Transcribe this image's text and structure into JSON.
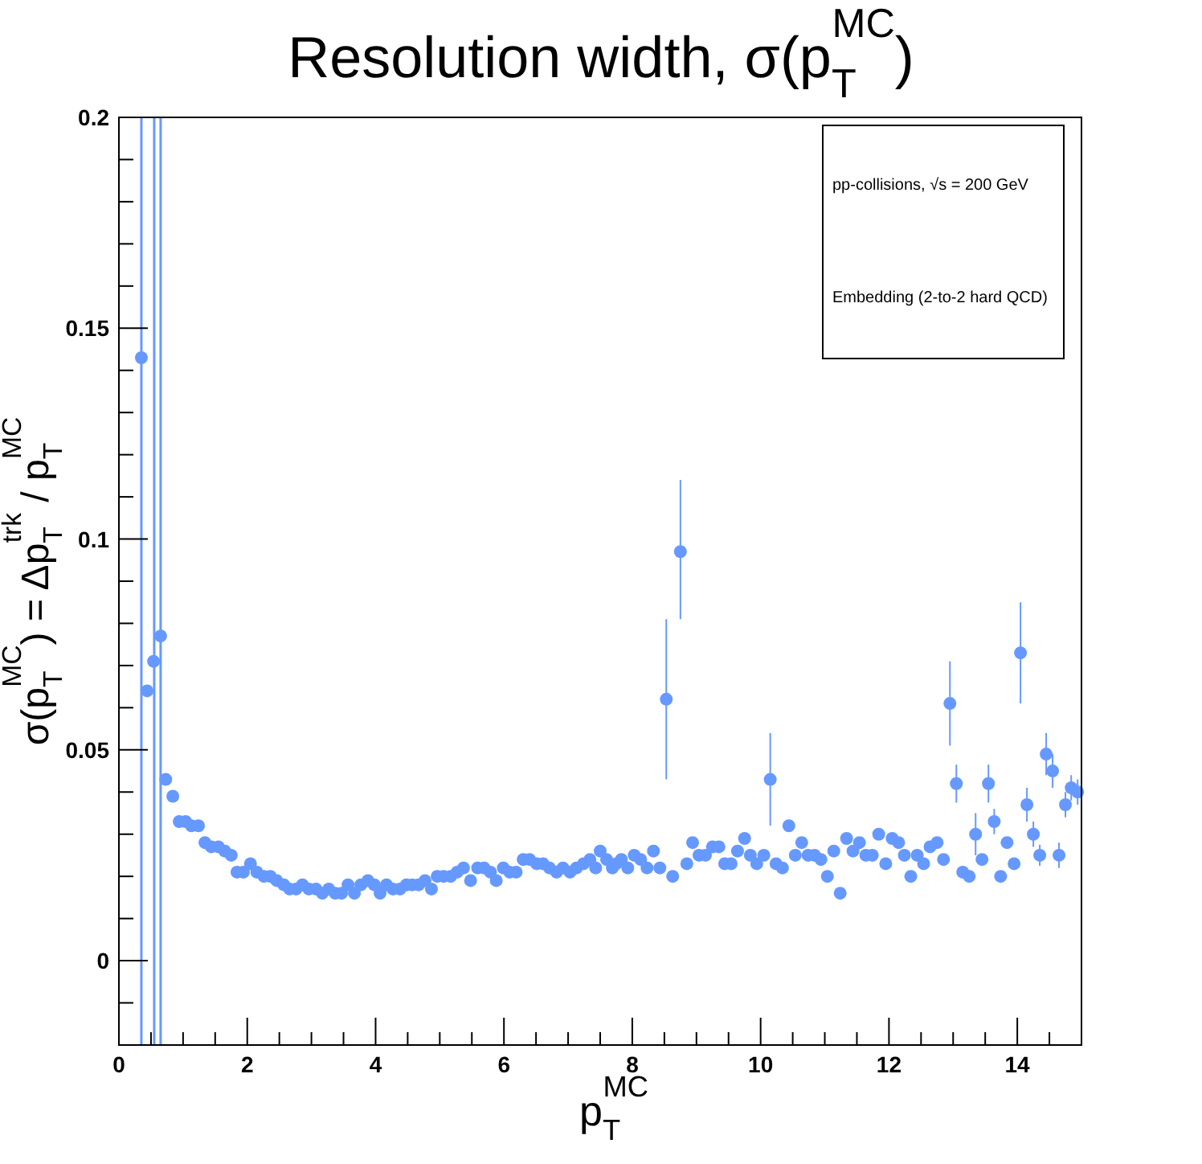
{
  "chart_data": {
    "type": "scatter",
    "title": "Resolution width, σ(p$_{T}$$^{MC}$)",
    "xlabel": "p$_{T}$$^{MC}$",
    "ylabel": "σ(p$_{T}$$^{MC}$) = Δp$_{T}$$^{trk}$ / p$_{T}$$^{MC}$",
    "annotations": [
      "pp-collisions, √s = 200 GeV",
      "Embedding (2-to-2 hard QCD)"
    ],
    "xlim": [
      0,
      15
    ],
    "ylim": [
      -0.02,
      0.2
    ],
    "xticks": [
      0,
      {
        "value": 0.5,
        "label": null
      },
      {
        "value": 1,
        "label": null
      },
      {
        "value": 1.5,
        "label": null
      },
      2,
      {
        "value": 2.5,
        "label": null
      },
      {
        "value": 3,
        "label": null
      },
      {
        "value": 3.5,
        "label": null
      },
      4,
      {
        "value": 4.5,
        "label": null
      },
      {
        "value": 5,
        "label": null
      },
      {
        "value": 5.5,
        "label": null
      },
      6,
      {
        "value": 6.5,
        "label": null
      },
      {
        "value": 7,
        "label": null
      },
      {
        "value": 7.5,
        "label": null
      },
      8,
      {
        "value": 8.5,
        "label": null
      },
      {
        "value": 9,
        "label": null
      },
      {
        "value": 9.5,
        "label": null
      },
      10,
      {
        "value": 10.5,
        "label": null
      },
      {
        "value": 11,
        "label": null
      },
      {
        "value": 11.5,
        "label": null
      },
      12,
      {
        "value": 12.5,
        "label": null
      },
      {
        "value": 13,
        "label": null
      },
      {
        "value": 13.5,
        "label": null
      },
      14,
      {
        "value": 14.5,
        "label": null
      }
    ],
    "yticks": [
      {
        "value": -0.01,
        "label": null
      },
      0,
      {
        "value": 0.01,
        "label": null
      },
      {
        "value": 0.02,
        "label": null
      },
      {
        "value": 0.03,
        "label": null
      },
      {
        "value": 0.04,
        "label": null
      },
      0.05,
      {
        "value": 0.06,
        "label": null
      },
      {
        "value": 0.07,
        "label": null
      },
      {
        "value": 0.08,
        "label": null
      },
      {
        "value": 0.09,
        "label": null
      },
      0.1,
      {
        "value": 0.11,
        "label": null
      },
      {
        "value": 0.12,
        "label": null
      },
      {
        "value": 0.13,
        "label": null
      },
      {
        "value": 0.14,
        "label": null
      },
      0.15,
      {
        "value": 0.16,
        "label": null
      },
      {
        "value": 0.17,
        "label": null
      },
      {
        "value": 0.18,
        "label": null
      },
      {
        "value": 0.19,
        "label": null
      },
      0.2
    ],
    "grid": false,
    "marker": "circle",
    "ref_lines": [
      {
        "axis": "x",
        "value": 0.35,
        "color": "#6699ff"
      },
      {
        "axis": "x",
        "value": 0.55,
        "color": "#6699ff"
      },
      {
        "axis": "x",
        "value": 0.65,
        "color": "#6699ff"
      }
    ],
    "series": [
      {
        "color": "#6699ff",
        "x": [
          0.35,
          0.44,
          0.54,
          0.65,
          0.73,
          0.84,
          0.94,
          1.04,
          1.13,
          1.24,
          1.34,
          1.44,
          1.55,
          1.65,
          1.75,
          1.84,
          1.94,
          2.05,
          2.15,
          2.26,
          2.36,
          2.46,
          2.57,
          2.66,
          2.76,
          2.86,
          2.96,
          3.07,
          3.17,
          3.27,
          3.37,
          3.47,
          3.57,
          3.67,
          3.77,
          3.88,
          3.98,
          4.07,
          4.17,
          4.27,
          4.38,
          4.48,
          4.57,
          4.67,
          4.77,
          4.87,
          4.96,
          5.06,
          5.17,
          5.27,
          5.37,
          5.48,
          5.59,
          5.69,
          5.79,
          5.88,
          5.99,
          6.09,
          6.19,
          6.3,
          6.4,
          6.51,
          6.61,
          6.71,
          6.82,
          6.92,
          7.03,
          7.13,
          7.24,
          7.34,
          7.43,
          7.5,
          7.6,
          7.69,
          7.75,
          7.83,
          7.93,
          8.03,
          8.13,
          8.23,
          8.33,
          8.43,
          8.53,
          8.63,
          8.75,
          8.85,
          8.94,
          9.04,
          9.14,
          9.25,
          9.35,
          9.44,
          9.54,
          9.64,
          9.75,
          9.84,
          9.94,
          10.05,
          10.15,
          10.24,
          10.34,
          10.44,
          10.54,
          10.64,
          10.74,
          10.84,
          10.94,
          11.04,
          11.14,
          11.24,
          11.34,
          11.44,
          11.54,
          11.64,
          11.74,
          11.84,
          11.95,
          12.05,
          12.15,
          12.24,
          12.34,
          12.44,
          12.54,
          12.64,
          12.75,
          12.85,
          12.95,
          13.05,
          13.15,
          13.25,
          13.35,
          13.45,
          13.55,
          13.64,
          13.74,
          13.84,
          13.95,
          14.05,
          14.15,
          14.25,
          14.35,
          14.45,
          14.55,
          14.65,
          14.75,
          14.84,
          14.94
        ],
        "values": [
          0.143,
          0.064,
          0.071,
          0.077,
          0.043,
          0.039,
          0.033,
          0.033,
          0.032,
          0.032,
          0.028,
          0.027,
          0.027,
          0.026,
          0.025,
          0.021,
          0.021,
          0.023,
          0.021,
          0.02,
          0.02,
          0.019,
          0.018,
          0.017,
          0.017,
          0.018,
          0.017,
          0.017,
          0.016,
          0.017,
          0.016,
          0.016,
          0.018,
          0.016,
          0.018,
          0.019,
          0.018,
          0.016,
          0.018,
          0.017,
          0.017,
          0.018,
          0.018,
          0.018,
          0.019,
          0.017,
          0.02,
          0.02,
          0.02,
          0.021,
          0.022,
          0.019,
          0.022,
          0.022,
          0.021,
          0.019,
          0.022,
          0.021,
          0.021,
          0.024,
          0.024,
          0.023,
          0.023,
          0.022,
          0.021,
          0.022,
          0.021,
          0.022,
          0.023,
          0.024,
          0.022,
          0.026,
          0.024,
          0.022,
          0.023,
          0.024,
          0.022,
          0.025,
          0.024,
          0.022,
          0.026,
          0.022,
          0.062,
          0.02,
          0.097,
          0.023,
          0.028,
          0.025,
          0.025,
          0.027,
          0.027,
          0.023,
          0.023,
          0.026,
          0.029,
          0.025,
          0.023,
          0.025,
          0.043,
          0.023,
          0.022,
          0.032,
          0.025,
          0.028,
          0.025,
          0.025,
          0.024,
          0.02,
          0.026,
          0.016,
          0.029,
          0.026,
          0.028,
          0.025,
          0.025,
          0.03,
          0.023,
          0.029,
          0.028,
          0.025,
          0.02,
          0.025,
          0.023,
          0.027,
          0.028,
          0.024,
          0.061,
          0.042,
          0.021,
          0.02,
          0.03,
          0.024,
          0.042,
          0.033,
          0.02,
          0.028,
          0.023,
          0.073,
          0.037,
          0.03,
          0.025,
          0.049,
          0.045,
          0.025,
          0.037,
          0.041,
          0.04
        ],
        "errors": [
          null,
          null,
          null,
          null,
          null,
          null,
          null,
          null,
          null,
          null,
          null,
          null,
          null,
          null,
          null,
          null,
          null,
          null,
          null,
          null,
          null,
          null,
          null,
          null,
          null,
          null,
          null,
          null,
          null,
          null,
          null,
          null,
          null,
          null,
          null,
          null,
          null,
          null,
          null,
          null,
          null,
          null,
          null,
          null,
          null,
          null,
          null,
          null,
          null,
          null,
          null,
          null,
          null,
          null,
          null,
          null,
          null,
          null,
          null,
          null,
          null,
          null,
          null,
          null,
          null,
          null,
          null,
          null,
          null,
          null,
          null,
          null,
          null,
          null,
          null,
          null,
          null,
          null,
          null,
          null,
          null,
          null,
          0.019,
          null,
          [
            0.081,
            0.114
          ],
          null,
          null,
          null,
          null,
          null,
          null,
          null,
          null,
          null,
          null,
          null,
          null,
          null,
          0.011,
          null,
          null,
          null,
          null,
          null,
          null,
          null,
          null,
          null,
          null,
          null,
          null,
          null,
          null,
          null,
          null,
          null,
          null,
          null,
          null,
          null,
          null,
          null,
          null,
          null,
          null,
          null,
          0.01,
          0.0045,
          null,
          null,
          0.005,
          null,
          0.0045,
          0.003,
          null,
          null,
          null,
          0.012,
          0.004,
          0.003,
          0.0025,
          0.005,
          0.004,
          0.003,
          0.003,
          0.003,
          0.003
        ]
      }
    ]
  }
}
